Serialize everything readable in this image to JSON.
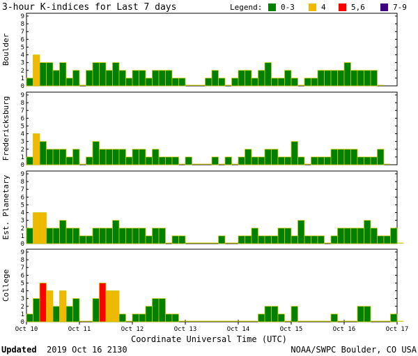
{
  "chart_data": {
    "type": "bar",
    "title": "3-hour K-indices for Last 7 days",
    "legend": {
      "label": "Legend:",
      "items": [
        {
          "label": "0-3",
          "color": "#008000"
        },
        {
          "label": "4",
          "color": "#f0b800"
        },
        {
          "label": "5,6",
          "color": "#ff0000"
        },
        {
          "label": "7-9",
          "color": "#400080"
        }
      ]
    },
    "bar_outline_color": "#c8c800",
    "xlabel": "Coordinate Universal Time (UTC)",
    "x_ticks": [
      "Oct 10",
      "Oct 11",
      "Oct 12",
      "Oct 13",
      "Oct 14",
      "Oct 15",
      "Oct 16",
      "Oct 17"
    ],
    "y_ticks": [
      "0",
      "1",
      "2",
      "3",
      "4",
      "5",
      "6",
      "7",
      "8",
      "9"
    ],
    "ylim": [
      0,
      9
    ],
    "bars_per_day": 8,
    "series": [
      {
        "name": "Boulder",
        "values": [
          1,
          4,
          3,
          3,
          2,
          3,
          1,
          2,
          0,
          2,
          3,
          3,
          2,
          3,
          2,
          1,
          2,
          2,
          1,
          2,
          2,
          2,
          1,
          1,
          0,
          0,
          0,
          1,
          2,
          1,
          0,
          1,
          2,
          2,
          1,
          2,
          3,
          1,
          1,
          2,
          1,
          0,
          1,
          1,
          2,
          2,
          2,
          2,
          3,
          2,
          2,
          2,
          2,
          0
        ]
      },
      {
        "name": "Fredericksburg",
        "values": [
          1,
          4,
          3,
          2,
          2,
          2,
          1,
          2,
          0,
          1,
          3,
          2,
          2,
          2,
          2,
          1,
          2,
          2,
          1,
          2,
          1,
          1,
          1,
          0,
          1,
          0,
          0,
          0,
          1,
          0,
          1,
          0,
          1,
          2,
          1,
          1,
          2,
          2,
          1,
          1,
          3,
          1,
          0,
          1,
          1,
          1,
          2,
          2,
          2,
          2,
          1,
          1,
          1,
          2,
          0
        ]
      },
      {
        "name": "Est. Planetary",
        "values": [
          2,
          4,
          4,
          2,
          2,
          3,
          2,
          2,
          1,
          1,
          2,
          2,
          2,
          3,
          2,
          2,
          2,
          2,
          1,
          2,
          2,
          0,
          1,
          1,
          0,
          0,
          0,
          0,
          0,
          1,
          0,
          0,
          1,
          1,
          2,
          1,
          1,
          1,
          2,
          2,
          1,
          3,
          1,
          1,
          1,
          0,
          1,
          2,
          2,
          2,
          2,
          3,
          2,
          1,
          1,
          2,
          0
        ]
      },
      {
        "name": "College",
        "values": [
          1,
          3,
          5,
          4,
          2,
          4,
          2,
          3,
          0,
          0,
          3,
          5,
          4,
          4,
          1,
          0,
          1,
          1,
          2,
          3,
          3,
          1,
          1,
          0,
          0,
          0,
          0,
          0,
          0,
          0,
          0,
          0,
          0,
          0,
          0,
          1,
          2,
          2,
          1,
          0,
          2,
          0,
          0,
          0,
          0,
          0,
          1,
          0,
          0,
          0,
          2,
          2,
          0,
          0,
          0,
          1,
          0
        ]
      }
    ]
  },
  "footer": {
    "updated_label": "Updated",
    "updated_value": "2019 Oct 16 2130",
    "credit": "NOAA/SWPC Boulder, CO USA"
  }
}
